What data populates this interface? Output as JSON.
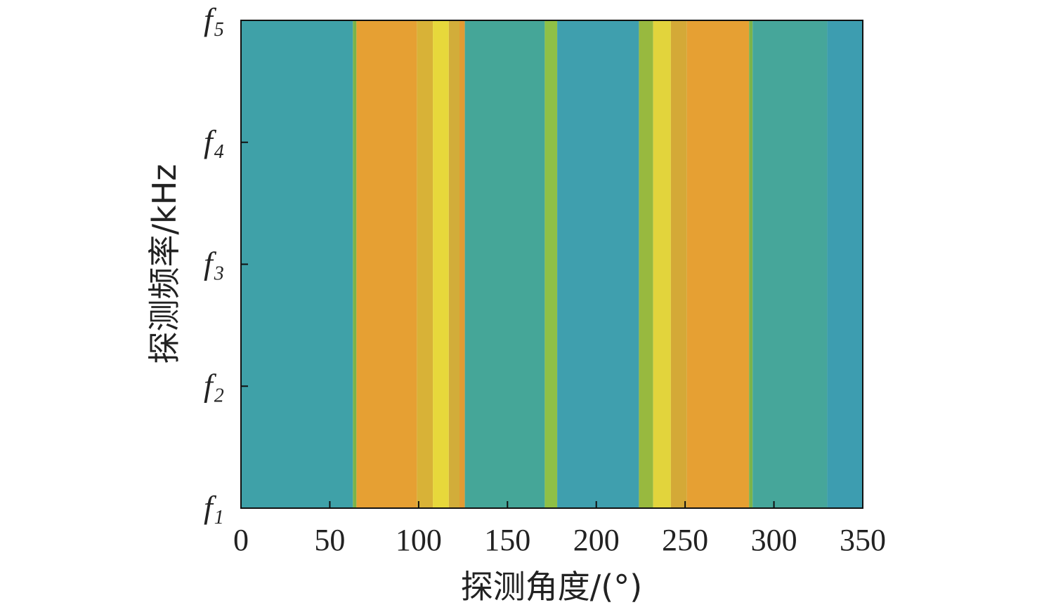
{
  "chart_data": {
    "type": "heatmap",
    "title": "",
    "xlabel": "探测角度/(°)",
    "ylabel": "探测频率/kHz",
    "xlim": [
      0,
      350
    ],
    "x_ticks": [
      "0",
      "50",
      "100",
      "150",
      "200",
      "250",
      "300",
      "350"
    ],
    "y_ticks": [
      {
        "main": "f",
        "sub": "1"
      },
      {
        "main": "f",
        "sub": "2"
      },
      {
        "main": "f",
        "sub": "3"
      },
      {
        "main": "f",
        "sub": "4"
      },
      {
        "main": "f",
        "sub": "5"
      }
    ],
    "grid": false,
    "bands": [
      {
        "x0": 0,
        "x1": 63,
        "color": "#3fa1a8"
      },
      {
        "x0": 63,
        "x1": 65,
        "color": "#7ab34a"
      },
      {
        "x0": 65,
        "x1": 99,
        "color": "#e6a033"
      },
      {
        "x0": 99,
        "x1": 108,
        "color": "#d8b237"
      },
      {
        "x0": 108,
        "x1": 117,
        "color": "#e7d83b"
      },
      {
        "x0": 117,
        "x1": 123,
        "color": "#d2ad3a"
      },
      {
        "x0": 123,
        "x1": 126,
        "color": "#e29b33"
      },
      {
        "x0": 126,
        "x1": 171,
        "color": "#45a698"
      },
      {
        "x0": 171,
        "x1": 178,
        "color": "#8fc046"
      },
      {
        "x0": 178,
        "x1": 224,
        "color": "#3f9fae"
      },
      {
        "x0": 224,
        "x1": 232,
        "color": "#98b93f"
      },
      {
        "x0": 232,
        "x1": 242,
        "color": "#e2d43c"
      },
      {
        "x0": 242,
        "x1": 251,
        "color": "#d4a937"
      },
      {
        "x0": 251,
        "x1": 286,
        "color": "#e6a033"
      },
      {
        "x0": 286,
        "x1": 288,
        "color": "#7ab34a"
      },
      {
        "x0": 288,
        "x1": 330,
        "color": "#46a69a"
      },
      {
        "x0": 330,
        "x1": 350,
        "color": "#3d9db0"
      }
    ],
    "colors": {
      "blue_teal": "#3fa1a8",
      "orange": "#e6a033",
      "yellow": "#e7d83b",
      "green": "#8fc046"
    }
  }
}
